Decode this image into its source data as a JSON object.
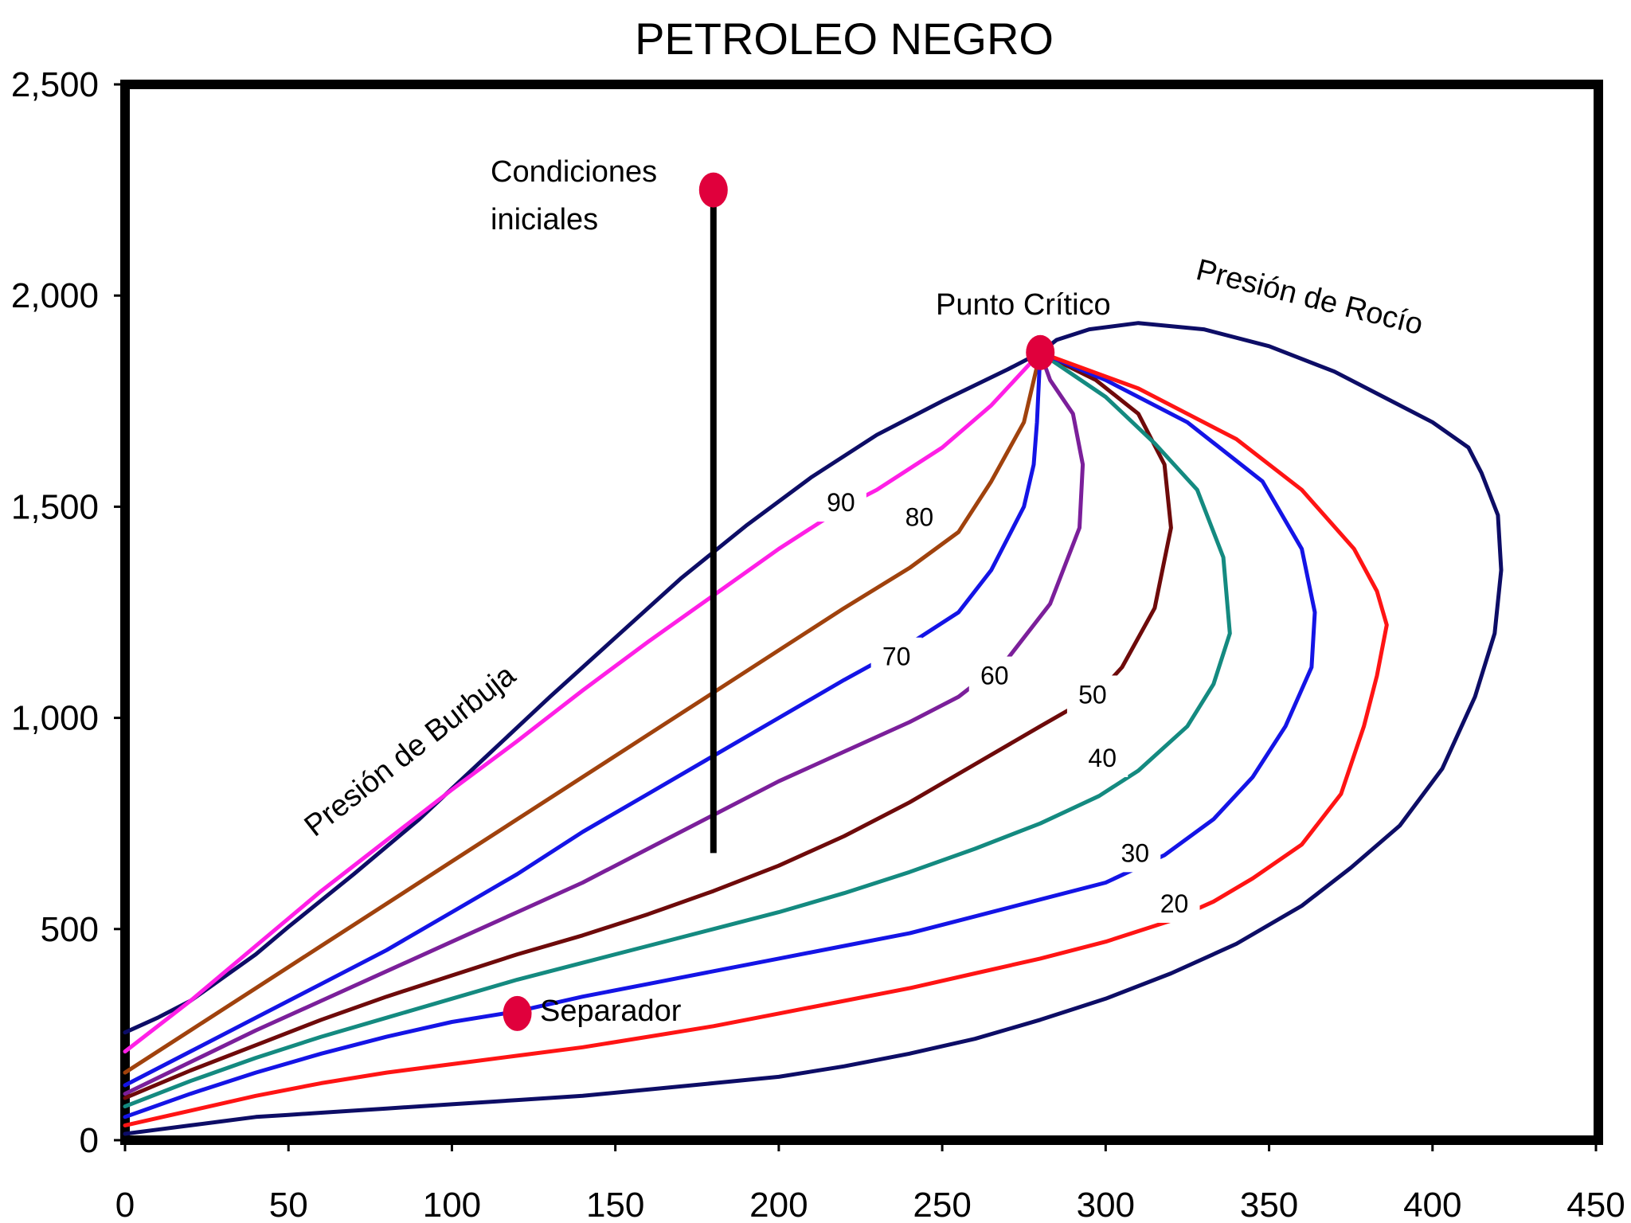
{
  "chart_data": {
    "type": "line",
    "title": "PETROLEO NEGRO",
    "xlabel": "",
    "ylabel": "",
    "xlim": [
      0,
      450
    ],
    "ylim": [
      0,
      2500
    ],
    "x_ticks": [
      {
        "value": 0,
        "label": "0"
      },
      {
        "value": 50,
        "label": "50"
      },
      {
        "value": 100,
        "label": "100"
      },
      {
        "value": 150,
        "label": "150"
      },
      {
        "value": 200,
        "label": "200"
      },
      {
        "value": 250,
        "label": "250"
      },
      {
        "value": 300,
        "label": "300"
      },
      {
        "value": 350,
        "label": "350"
      },
      {
        "value": 400,
        "label": "400"
      },
      {
        "value": 450,
        "label": "450"
      }
    ],
    "y_ticks": [
      {
        "value": 0,
        "label": "0"
      },
      {
        "value": 500,
        "label": "500"
      },
      {
        "value": 1000,
        "label": "1,000"
      },
      {
        "value": 1500,
        "label": "1,500"
      },
      {
        "value": 2000,
        "label": "2,000"
      },
      {
        "value": 2500,
        "label": "2,500"
      }
    ],
    "grid": false,
    "envelope": {
      "name": "Presión de Burbuja / Presión de Rocío",
      "color": "#0d0d66",
      "points": [
        [
          0,
          15
        ],
        [
          10,
          25
        ],
        [
          20,
          35
        ],
        [
          30,
          45
        ],
        [
          40,
          55
        ],
        [
          50,
          60
        ],
        [
          60,
          65
        ],
        [
          80,
          75
        ],
        [
          100,
          85
        ],
        [
          120,
          95
        ],
        [
          140,
          105
        ],
        [
          160,
          120
        ],
        [
          180,
          135
        ],
        [
          200,
          150
        ],
        [
          220,
          175
        ],
        [
          240,
          205
        ],
        [
          260,
          240
        ],
        [
          280,
          285
        ],
        [
          300,
          335
        ],
        [
          320,
          395
        ],
        [
          340,
          465
        ],
        [
          360,
          555
        ],
        [
          375,
          645
        ],
        [
          390,
          745
        ],
        [
          403,
          880
        ],
        [
          413,
          1050
        ],
        [
          419,
          1200
        ],
        [
          421,
          1350
        ],
        [
          420,
          1480
        ],
        [
          415,
          1580
        ],
        [
          411,
          1640
        ],
        [
          400,
          1700
        ],
        [
          385,
          1760
        ],
        [
          370,
          1820
        ],
        [
          350,
          1880
        ],
        [
          330,
          1920
        ],
        [
          310,
          1935
        ],
        [
          295,
          1920
        ],
        [
          285,
          1895
        ],
        [
          280,
          1865
        ],
        [
          270,
          1825
        ],
        [
          250,
          1750
        ],
        [
          230,
          1670
        ],
        [
          210,
          1570
        ],
        [
          190,
          1455
        ],
        [
          170,
          1330
        ],
        [
          150,
          1190
        ],
        [
          130,
          1050
        ],
        [
          110,
          905
        ],
        [
          90,
          760
        ],
        [
          70,
          630
        ],
        [
          50,
          505
        ],
        [
          40,
          440
        ],
        [
          30,
          385
        ],
        [
          20,
          330
        ],
        [
          10,
          290
        ],
        [
          0,
          255
        ]
      ]
    },
    "series": [
      {
        "name": "90",
        "label": "90",
        "color": "#ff1fe6",
        "points": [
          [
            0,
            210
          ],
          [
            20,
            330
          ],
          [
            40,
            460
          ],
          [
            60,
            590
          ],
          [
            80,
            710
          ],
          [
            100,
            830
          ],
          [
            120,
            945
          ],
          [
            140,
            1065
          ],
          [
            160,
            1180
          ],
          [
            180,
            1290
          ],
          [
            200,
            1400
          ],
          [
            220,
            1500
          ],
          [
            230,
            1540
          ],
          [
            250,
            1640
          ],
          [
            265,
            1740
          ],
          [
            280,
            1865
          ]
        ]
      },
      {
        "name": "80",
        "label": "80",
        "color": "#a0420d",
        "points": [
          [
            0,
            160
          ],
          [
            20,
            260
          ],
          [
            40,
            360
          ],
          [
            60,
            460
          ],
          [
            80,
            560
          ],
          [
            100,
            660
          ],
          [
            120,
            760
          ],
          [
            140,
            860
          ],
          [
            160,
            960
          ],
          [
            180,
            1060
          ],
          [
            200,
            1160
          ],
          [
            220,
            1260
          ],
          [
            240,
            1355
          ],
          [
            255,
            1440
          ],
          [
            265,
            1560
          ],
          [
            275,
            1700
          ],
          [
            280,
            1865
          ]
        ]
      },
      {
        "name": "70",
        "label": "70",
        "color": "#1414e6",
        "points": [
          [
            0,
            130
          ],
          [
            20,
            210
          ],
          [
            40,
            290
          ],
          [
            60,
            370
          ],
          [
            80,
            450
          ],
          [
            100,
            540
          ],
          [
            120,
            630
          ],
          [
            140,
            730
          ],
          [
            160,
            820
          ],
          [
            180,
            910
          ],
          [
            200,
            1000
          ],
          [
            220,
            1090
          ],
          [
            240,
            1175
          ],
          [
            255,
            1250
          ],
          [
            265,
            1350
          ],
          [
            275,
            1500
          ],
          [
            278,
            1600
          ],
          [
            279,
            1700
          ],
          [
            280,
            1865
          ]
        ]
      },
      {
        "name": "60",
        "label": "60",
        "color": "#7b1f9a",
        "points": [
          [
            0,
            110
          ],
          [
            20,
            185
          ],
          [
            40,
            260
          ],
          [
            60,
            330
          ],
          [
            80,
            400
          ],
          [
            100,
            470
          ],
          [
            120,
            540
          ],
          [
            140,
            610
          ],
          [
            160,
            690
          ],
          [
            180,
            770
          ],
          [
            200,
            850
          ],
          [
            220,
            920
          ],
          [
            240,
            990
          ],
          [
            255,
            1050
          ],
          [
            270,
            1140
          ],
          [
            283,
            1270
          ],
          [
            292,
            1450
          ],
          [
            293,
            1600
          ],
          [
            290,
            1720
          ],
          [
            283,
            1800
          ],
          [
            280,
            1865
          ]
        ]
      },
      {
        "name": "50",
        "label": "50",
        "color": "#6e0a0a",
        "points": [
          [
            0,
            100
          ],
          [
            20,
            165
          ],
          [
            40,
            225
          ],
          [
            60,
            285
          ],
          [
            80,
            340
          ],
          [
            100,
            390
          ],
          [
            120,
            440
          ],
          [
            140,
            485
          ],
          [
            160,
            535
          ],
          [
            180,
            590
          ],
          [
            200,
            650
          ],
          [
            220,
            720
          ],
          [
            240,
            800
          ],
          [
            260,
            890
          ],
          [
            280,
            980
          ],
          [
            298,
            1060
          ],
          [
            305,
            1120
          ],
          [
            315,
            1260
          ],
          [
            320,
            1450
          ],
          [
            318,
            1600
          ],
          [
            310,
            1720
          ],
          [
            297,
            1800
          ],
          [
            280,
            1865
          ]
        ]
      },
      {
        "name": "40",
        "label": "40",
        "color": "#148a80",
        "points": [
          [
            0,
            80
          ],
          [
            20,
            140
          ],
          [
            40,
            195
          ],
          [
            60,
            245
          ],
          [
            80,
            290
          ],
          [
            100,
            335
          ],
          [
            120,
            380
          ],
          [
            140,
            420
          ],
          [
            160,
            460
          ],
          [
            180,
            500
          ],
          [
            200,
            540
          ],
          [
            220,
            585
          ],
          [
            240,
            635
          ],
          [
            260,
            690
          ],
          [
            280,
            750
          ],
          [
            298,
            815
          ],
          [
            310,
            875
          ],
          [
            325,
            980
          ],
          [
            333,
            1080
          ],
          [
            338,
            1200
          ],
          [
            336,
            1380
          ],
          [
            328,
            1540
          ],
          [
            315,
            1650
          ],
          [
            300,
            1760
          ],
          [
            280,
            1865
          ]
        ]
      },
      {
        "name": "30",
        "label": "30",
        "color": "#1414e6",
        "points": [
          [
            0,
            55
          ],
          [
            20,
            110
          ],
          [
            40,
            160
          ],
          [
            60,
            205
          ],
          [
            80,
            245
          ],
          [
            100,
            280
          ],
          [
            120,
            305
          ],
          [
            140,
            340
          ],
          [
            160,
            370
          ],
          [
            180,
            400
          ],
          [
            200,
            430
          ],
          [
            220,
            460
          ],
          [
            240,
            490
          ],
          [
            260,
            530
          ],
          [
            280,
            570
          ],
          [
            300,
            610
          ],
          [
            318,
            675
          ],
          [
            333,
            760
          ],
          [
            345,
            860
          ],
          [
            355,
            980
          ],
          [
            363,
            1120
          ],
          [
            364,
            1250
          ],
          [
            360,
            1400
          ],
          [
            348,
            1560
          ],
          [
            325,
            1700
          ],
          [
            300,
            1800
          ],
          [
            280,
            1865
          ]
        ]
      },
      {
        "name": "20",
        "label": "20",
        "color": "#ff1414",
        "points": [
          [
            0,
            35
          ],
          [
            20,
            70
          ],
          [
            40,
            105
          ],
          [
            60,
            135
          ],
          [
            80,
            160
          ],
          [
            100,
            180
          ],
          [
            120,
            200
          ],
          [
            140,
            220
          ],
          [
            160,
            245
          ],
          [
            180,
            270
          ],
          [
            200,
            300
          ],
          [
            220,
            330
          ],
          [
            240,
            360
          ],
          [
            260,
            395
          ],
          [
            280,
            430
          ],
          [
            300,
            470
          ],
          [
            320,
            520
          ],
          [
            333,
            565
          ],
          [
            345,
            620
          ],
          [
            360,
            700
          ],
          [
            372,
            820
          ],
          [
            379,
            980
          ],
          [
            383,
            1100
          ],
          [
            386,
            1220
          ],
          [
            383,
            1300
          ],
          [
            376,
            1400
          ],
          [
            360,
            1540
          ],
          [
            340,
            1660
          ],
          [
            310,
            1780
          ],
          [
            280,
            1865
          ]
        ]
      }
    ],
    "markers": [
      {
        "name": "Condiciones iniciales",
        "x": 180,
        "y": 2250
      },
      {
        "name": "Punto Crítico",
        "x": 280,
        "y": 1865
      },
      {
        "name": "Separador",
        "x": 120,
        "y": 300
      }
    ],
    "vertical_path": {
      "x": 180,
      "y_start": 2250,
      "y_end": 680
    },
    "annotations": {
      "condiciones_line1": "Condiciones",
      "condiciones_line2": "iniciales",
      "punto_critico": "Punto Crítico",
      "presion_rocio": "Presión de Rocío",
      "presion_burbuja": "Presión de Burbuja",
      "separador": "Separador"
    },
    "colors": {
      "marker": "#e0003c",
      "axis": "#000000",
      "path": "#000000"
    }
  }
}
